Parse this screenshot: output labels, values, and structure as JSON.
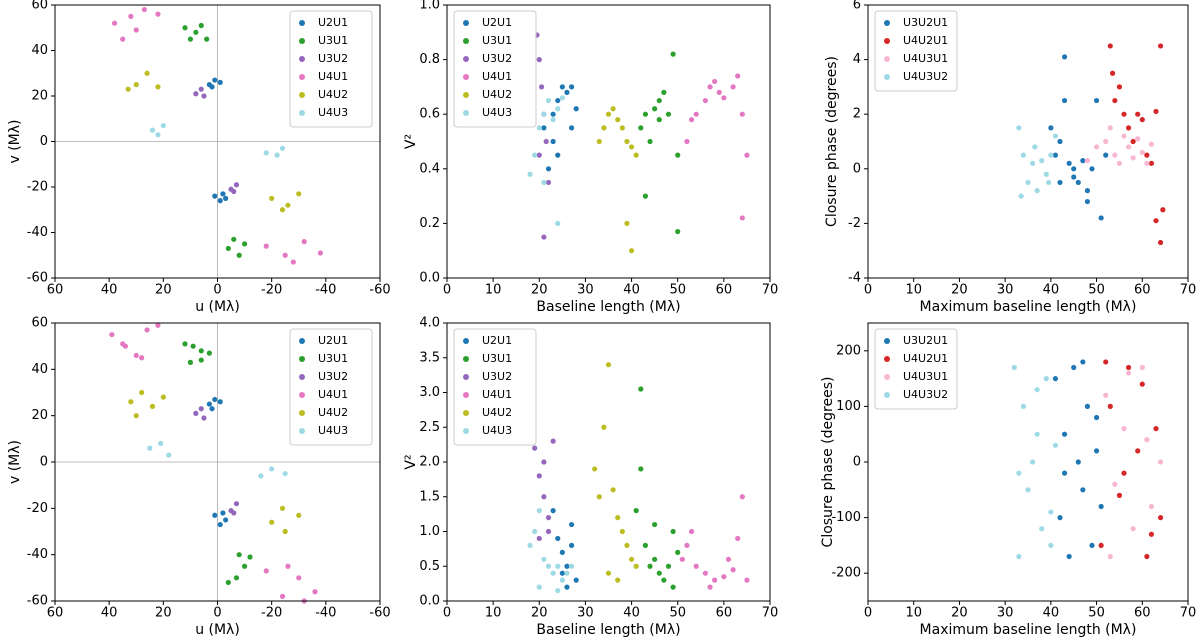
{
  "chart_data": [
    {
      "type": "scatter",
      "xlabel": "u (Mλ)",
      "ylabel": "v (Mλ)",
      "xlim": [
        60,
        -60
      ],
      "ylim": [
        -60,
        60
      ],
      "xticks": [
        60,
        40,
        20,
        0,
        -20,
        -40,
        -60
      ],
      "yticks": [
        -60,
        -40,
        -20,
        0,
        20,
        40,
        60
      ],
      "zero_lines": true,
      "legend": "upper right",
      "series": [
        {
          "name": "U2U1",
          "color": "#1f77b4",
          "x": [
            3,
            1,
            -1,
            2,
            -3,
            -1,
            1,
            -2
          ],
          "values": [
            25,
            27,
            26,
            24,
            -25,
            -26,
            -24,
            -23
          ]
        },
        {
          "name": "U3U1",
          "color": "#2ca02c",
          "x": [
            12,
            8,
            4,
            10,
            6,
            -6,
            -10,
            -4,
            -8
          ],
          "values": [
            50,
            48,
            45,
            45,
            51,
            -43,
            -45,
            -47,
            -50
          ]
        },
        {
          "name": "U3U2",
          "color": "#9467bd",
          "x": [
            8,
            6,
            5,
            -5,
            -7,
            -6
          ],
          "values": [
            21,
            23,
            20,
            -21,
            -19,
            -22
          ]
        },
        {
          "name": "U4U1",
          "color": "#e377c2",
          "x": [
            38,
            32,
            27,
            22,
            35,
            30,
            -18,
            -25,
            -32,
            -38,
            -28
          ],
          "values": [
            52,
            55,
            58,
            56,
            45,
            49,
            -46,
            -50,
            -44,
            -49,
            -53
          ]
        },
        {
          "name": "U4U2",
          "color": "#bcbd22",
          "x": [
            30,
            26,
            22,
            33,
            -20,
            -26,
            -30,
            -24
          ],
          "values": [
            25,
            30,
            24,
            23,
            -25,
            -28,
            -23,
            -30
          ]
        },
        {
          "name": "U4U3",
          "color": "#9edae5",
          "x": [
            24,
            20,
            22,
            -18,
            -24,
            -22
          ],
          "values": [
            5,
            7,
            3,
            -5,
            -3,
            -6
          ]
        }
      ]
    },
    {
      "type": "scatter",
      "xlabel": "Baseline length (Mλ)",
      "ylabel": "V²",
      "xlim": [
        0,
        70
      ],
      "ylim": [
        0,
        1
      ],
      "xticks": [
        0,
        10,
        20,
        30,
        40,
        50,
        60,
        70
      ],
      "yticks": [
        {
          "value": 0,
          "label": "0.0"
        },
        0.2,
        0.4,
        0.6,
        0.8,
        {
          "value": 1,
          "label": "1.0"
        }
      ],
      "legend": "upper left",
      "series": [
        {
          "name": "U2U1",
          "color": "#1f77b4",
          "x": [
            21,
            23,
            24,
            25,
            26,
            27,
            28,
            24,
            22,
            27,
            23
          ],
          "values": [
            0.55,
            0.6,
            0.65,
            0.7,
            0.68,
            0.7,
            0.62,
            0.45,
            0.4,
            0.55,
            0.5
          ]
        },
        {
          "name": "U3U1",
          "color": "#2ca02c",
          "x": [
            42,
            43,
            44,
            45,
            46,
            47,
            48,
            49,
            50,
            43,
            46,
            50
          ],
          "values": [
            0.55,
            0.6,
            0.5,
            0.62,
            0.65,
            0.68,
            0.6,
            0.82,
            0.45,
            0.3,
            0.58,
            0.17
          ]
        },
        {
          "name": "U3U2",
          "color": "#9467bd",
          "x": [
            19.5,
            20,
            20.5,
            21,
            21.5,
            22,
            20,
            21
          ],
          "values": [
            0.89,
            0.8,
            0.7,
            0.6,
            0.5,
            0.35,
            0.45,
            0.15
          ]
        },
        {
          "name": "U4U1",
          "color": "#e377c2",
          "x": [
            52,
            54,
            56,
            57,
            58,
            59,
            60,
            62,
            63,
            64,
            65,
            53,
            64
          ],
          "values": [
            0.5,
            0.6,
            0.65,
            0.7,
            0.72,
            0.68,
            0.66,
            0.7,
            0.74,
            0.6,
            0.45,
            0.58,
            0.22
          ]
        },
        {
          "name": "U4U2",
          "color": "#bcbd22",
          "x": [
            33,
            34,
            35,
            36,
            37,
            38,
            39,
            40,
            41,
            39,
            40
          ],
          "values": [
            0.5,
            0.55,
            0.6,
            0.62,
            0.58,
            0.55,
            0.5,
            0.48,
            0.45,
            0.2,
            0.1
          ]
        },
        {
          "name": "U4U3",
          "color": "#9edae5",
          "x": [
            18,
            19,
            20,
            21,
            22,
            23,
            24,
            25,
            21,
            24
          ],
          "values": [
            0.38,
            0.45,
            0.55,
            0.6,
            0.65,
            0.58,
            0.62,
            0.66,
            0.35,
            0.2
          ]
        }
      ]
    },
    {
      "type": "scatter",
      "xlabel": "Maximum baseline length (Mλ)",
      "ylabel": "Closure phase (degrees)",
      "xlim": [
        0,
        70
      ],
      "ylim": [
        -4,
        6
      ],
      "xticks": [
        0,
        10,
        20,
        30,
        40,
        50,
        60,
        70
      ],
      "yticks": [
        -4,
        -2,
        0,
        2,
        4,
        6
      ],
      "legend": "upper left",
      "series": [
        {
          "name": "U3U2U1",
          "color": "#1f77b4",
          "x": [
            40,
            41,
            42,
            43,
            43,
            44,
            45,
            46,
            47,
            48,
            49,
            50,
            51,
            52,
            42,
            45,
            48
          ],
          "values": [
            1.5,
            0.5,
            -0.5,
            4.1,
            2.5,
            0.2,
            0,
            -0.5,
            0.3,
            -1.2,
            0,
            2.5,
            -1.8,
            0.5,
            1,
            -0.3,
            -0.8
          ]
        },
        {
          "name": "U4U2U1",
          "color": "#d62728",
          "x": [
            53,
            53.5,
            54,
            55,
            56,
            57,
            58,
            59,
            60,
            61,
            62,
            63,
            64,
            64,
            63,
            64.5
          ],
          "values": [
            4.5,
            3.5,
            2.5,
            3,
            2,
            1.5,
            1,
            2,
            1.8,
            0.5,
            0.2,
            -1.9,
            4.5,
            -2.7,
            2.1,
            -1.5
          ]
        },
        {
          "name": "U4U3U1",
          "color": "#f7b6d2",
          "x": [
            48,
            50,
            52,
            53,
            54,
            55,
            56,
            57,
            58,
            59,
            60,
            61,
            62
          ],
          "values": [
            0.3,
            0.8,
            1,
            1.5,
            0.5,
            0.2,
            1.2,
            0.8,
            0.4,
            1.1,
            0.6,
            0.2,
            0.9
          ]
        },
        {
          "name": "U4U3U2",
          "color": "#9edae5",
          "x": [
            33,
            34,
            35,
            36,
            37,
            38,
            39,
            40,
            41,
            33.5,
            36.5,
            39.5
          ],
          "values": [
            1.5,
            0.5,
            -0.5,
            0.2,
            -0.8,
            0.3,
            -0.2,
            0.5,
            1.2,
            -1,
            0.8,
            -0.5
          ]
        }
      ]
    },
    {
      "type": "scatter",
      "xlabel": "u (Mλ)",
      "ylabel": "v (Mλ)",
      "xlim": [
        60,
        -60
      ],
      "ylim": [
        -60,
        60
      ],
      "xticks": [
        60,
        40,
        20,
        0,
        -20,
        -40,
        -60
      ],
      "yticks": [
        -60,
        -40,
        -20,
        0,
        20,
        40,
        60
      ],
      "zero_lines": true,
      "legend": "upper right",
      "series": [
        {
          "name": "U2U1",
          "color": "#1f77b4",
          "x": [
            3,
            1,
            -1,
            2,
            -3,
            -1,
            1,
            -2
          ],
          "values": [
            25,
            27,
            26,
            23,
            -25,
            -27,
            -23,
            -22
          ]
        },
        {
          "name": "U3U1",
          "color": "#2ca02c",
          "x": [
            12,
            9,
            6,
            3,
            10,
            6,
            -4,
            -7,
            -10,
            -12,
            -8
          ],
          "values": [
            51,
            50,
            48,
            47,
            43,
            44,
            -52,
            -50,
            -45,
            -41,
            -40
          ]
        },
        {
          "name": "U3U2",
          "color": "#9467bd",
          "x": [
            8,
            6,
            5,
            -5,
            -7,
            -6
          ],
          "values": [
            21,
            23,
            19,
            -21,
            -18,
            -22
          ]
        },
        {
          "name": "U4U1",
          "color": "#e377c2",
          "x": [
            39,
            34,
            30,
            26,
            22,
            35,
            28,
            -18,
            -24,
            -30,
            -36,
            -26,
            -32
          ],
          "values": [
            55,
            50,
            46,
            57,
            59,
            51,
            45,
            -47,
            -58,
            -50,
            -56,
            -45,
            -60
          ]
        },
        {
          "name": "U4U2",
          "color": "#bcbd22",
          "x": [
            32,
            28,
            24,
            20,
            30,
            -20,
            -25,
            -30,
            -24
          ],
          "values": [
            26,
            30,
            24,
            28,
            20,
            -26,
            -30,
            -23,
            -20
          ]
        },
        {
          "name": "U4U3",
          "color": "#9edae5",
          "x": [
            25,
            21,
            18,
            -16,
            -20,
            -25
          ],
          "values": [
            6,
            8,
            3,
            -6,
            -3,
            -5
          ]
        }
      ]
    },
    {
      "type": "scatter",
      "xlabel": "Baseline length (Mλ)",
      "ylabel": "V²",
      "xlim": [
        0,
        70
      ],
      "ylim": [
        0,
        4
      ],
      "xticks": [
        0,
        10,
        20,
        30,
        40,
        50,
        60,
        70
      ],
      "yticks": [
        {
          "value": 0,
          "label": "0.0"
        },
        0.5,
        {
          "value": 1,
          "label": "1.0"
        },
        1.5,
        {
          "value": 2,
          "label": "2.0"
        },
        2.5,
        {
          "value": 3,
          "label": "3.0"
        },
        3.5,
        {
          "value": 4,
          "label": "4.0"
        }
      ],
      "legend": "upper left",
      "series": [
        {
          "name": "U2U1",
          "color": "#1f77b4",
          "x": [
            23,
            24,
            25,
            26,
            27,
            28,
            27,
            26,
            25
          ],
          "values": [
            1.3,
            0.9,
            0.7,
            0.5,
            0.8,
            0.3,
            1.1,
            0.2,
            0.4
          ]
        },
        {
          "name": "U3U1",
          "color": "#2ca02c",
          "x": [
            41,
            42,
            43,
            44,
            45,
            46,
            47,
            48,
            49,
            50,
            42,
            45,
            49
          ],
          "values": [
            1.3,
            3.05,
            0.8,
            0.5,
            0.6,
            0.4,
            0.3,
            0.5,
            1,
            0.7,
            1.9,
            1.1,
            0.2
          ]
        },
        {
          "name": "U3U2",
          "color": "#9467bd",
          "x": [
            19,
            20,
            21,
            22,
            23,
            20,
            21,
            22
          ],
          "values": [
            2.2,
            1.8,
            1.5,
            1.2,
            2.3,
            0.9,
            2,
            1
          ]
        },
        {
          "name": "U4U1",
          "color": "#e377c2",
          "x": [
            51,
            52,
            54,
            56,
            58,
            60,
            62,
            64,
            65,
            53,
            57,
            61,
            63
          ],
          "values": [
            0.6,
            0.8,
            0.5,
            0.4,
            0.3,
            0.35,
            0.45,
            1.5,
            0.3,
            1,
            0.2,
            0.6,
            0.9
          ]
        },
        {
          "name": "U4U2",
          "color": "#bcbd22",
          "x": [
            32,
            33,
            34,
            35,
            36,
            37,
            38,
            39,
            40,
            41,
            35,
            37
          ],
          "values": [
            1.9,
            1.5,
            2.5,
            3.4,
            1.6,
            1.2,
            1,
            0.8,
            0.6,
            0.5,
            0.4,
            0.3
          ]
        },
        {
          "name": "U4U3",
          "color": "#9edae5",
          "x": [
            18,
            19,
            20,
            21,
            22,
            23,
            24,
            25,
            26,
            27,
            20,
            24
          ],
          "values": [
            0.8,
            1,
            1.3,
            0.6,
            0.5,
            0.4,
            0.5,
            0.3,
            0.4,
            0.5,
            0.2,
            0.15
          ]
        }
      ]
    },
    {
      "type": "scatter",
      "xlabel": "Maximum baseline length (Mλ)",
      "ylabel": "Closure phase (degrees)",
      "xlim": [
        0,
        70
      ],
      "ylim": [
        -250,
        250
      ],
      "xticks": [
        0,
        10,
        20,
        30,
        40,
        50,
        60,
        70
      ],
      "yticks": [
        -200,
        -100,
        0,
        100,
        200
      ],
      "legend": "upper left",
      "series": [
        {
          "name": "U3U2U1",
          "color": "#1f77b4",
          "x": [
            41,
            42,
            43,
            44,
            45,
            46,
            47,
            48,
            49,
            50,
            51,
            43,
            47,
            50
          ],
          "values": [
            150,
            -100,
            50,
            -170,
            170,
            0,
            -50,
            100,
            -150,
            80,
            -80,
            -20,
            180,
            20
          ]
        },
        {
          "name": "U4U2U1",
          "color": "#d62728",
          "x": [
            51,
            53,
            55,
            57,
            59,
            61,
            63,
            64,
            52,
            56,
            60,
            62
          ],
          "values": [
            -150,
            100,
            -60,
            170,
            20,
            -170,
            60,
            -100,
            180,
            -20,
            140,
            -130
          ]
        },
        {
          "name": "U4U3U1",
          "color": "#f7b6d2",
          "x": [
            52,
            54,
            56,
            58,
            60,
            62,
            64,
            53,
            57,
            61
          ],
          "values": [
            120,
            -40,
            60,
            -120,
            170,
            -80,
            0,
            -170,
            160,
            40
          ]
        },
        {
          "name": "U4U3U2",
          "color": "#9edae5",
          "x": [
            32,
            33,
            34,
            35,
            36,
            37,
            38,
            39,
            40,
            41,
            33,
            37,
            40
          ],
          "values": [
            170,
            -170,
            100,
            -50,
            0,
            50,
            -120,
            150,
            -90,
            30,
            -20,
            130,
            -150
          ]
        }
      ]
    }
  ]
}
